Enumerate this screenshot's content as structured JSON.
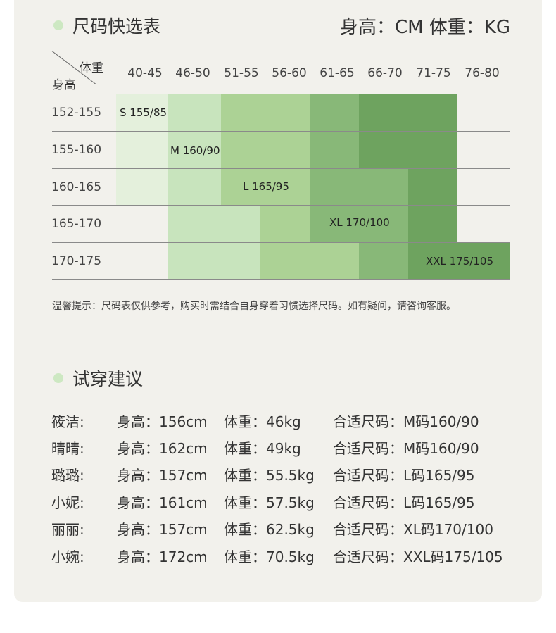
{
  "section1": {
    "title": "尺码快选表",
    "units": "身高：CM  体重：KG"
  },
  "table": {
    "corner_col": "体重",
    "corner_row": "身高",
    "columns": [
      "40-45",
      "46-50",
      "51-55",
      "56-60",
      "61-65",
      "66-70",
      "71-75",
      "76-80"
    ],
    "rows": [
      "152-155",
      "155-160",
      "160-165",
      "165-170",
      "170-175"
    ],
    "sizes": [
      "S 155/85",
      "M 160/90",
      "L 165/95",
      "XL 170/100",
      "XXL 175/105"
    ]
  },
  "note": "温馨提示：尺码表仅供参考，购买时需结合自身穿着习惯选择尺码。如有疑问，请咨询客服。",
  "section2": {
    "title": "试穿建议"
  },
  "fittings": [
    [
      "筱洁:",
      "身高：156cm",
      "体重：46kg",
      "合适尺码：M码160/90"
    ],
    [
      "晴晴:",
      "身高：162cm",
      "体重：49kg",
      "合适尺码：M码160/90"
    ],
    [
      "璐璐:",
      "身高：157cm",
      "体重：55.5kg",
      "合适尺码：L码165/95"
    ],
    [
      "小妮:",
      "身高：161cm",
      "体重：57.5kg",
      "合适尺码：L码165/95"
    ],
    [
      "丽丽:",
      "身高：157cm",
      "体重：62.5kg",
      "合适尺码：XL码170/100"
    ],
    [
      "小婉:",
      "身高：172cm",
      "体重：70.5kg",
      "合适尺码：XXL码175/105"
    ]
  ]
}
